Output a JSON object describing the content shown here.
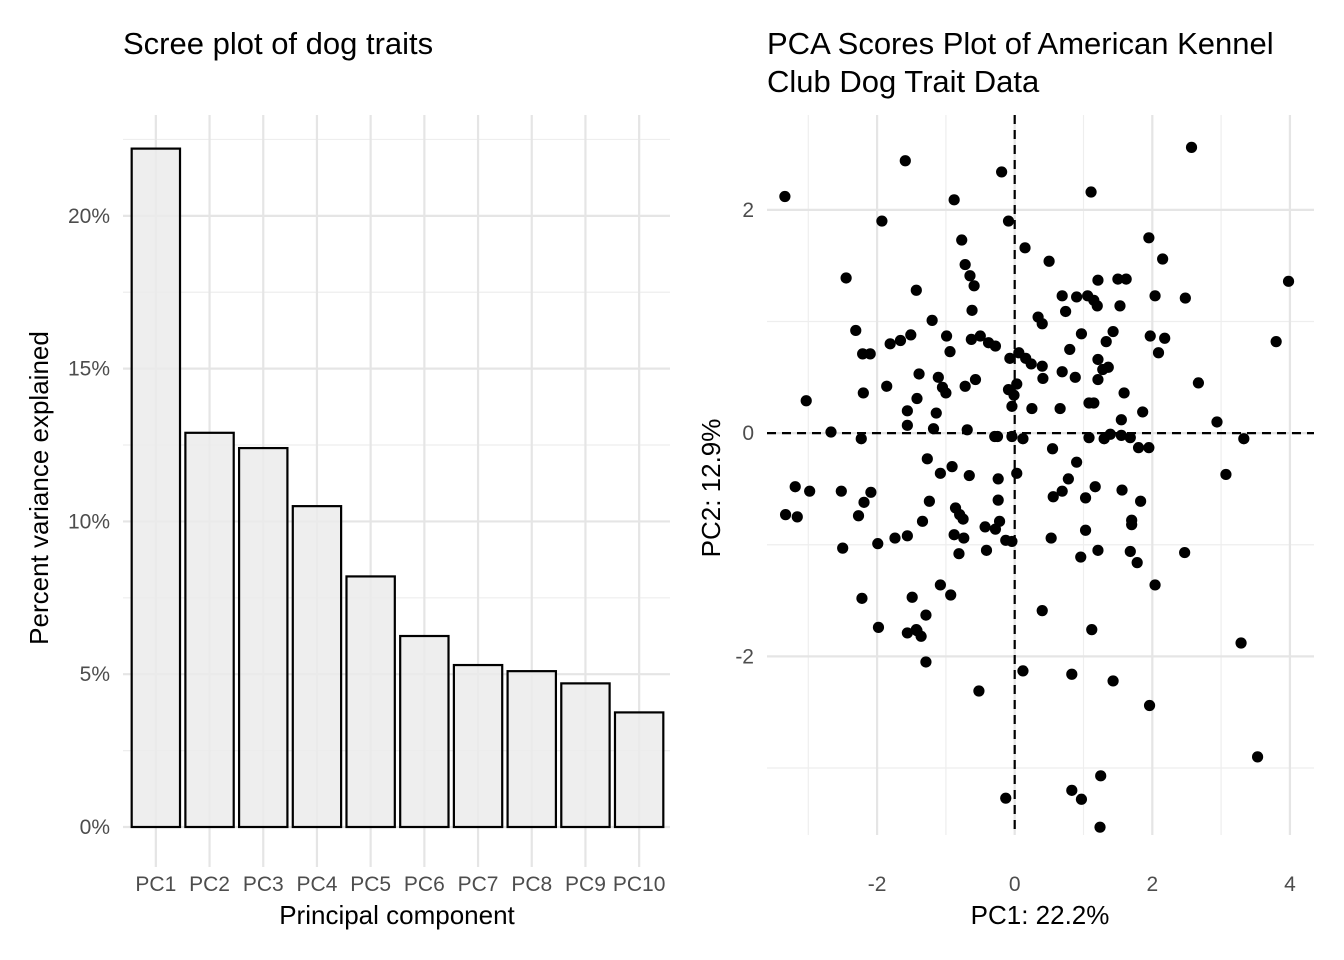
{
  "chart_data": [
    {
      "type": "bar",
      "title": "Scree plot of dog traits",
      "xlabel": "Principal component",
      "ylabel": "Percent variance explained",
      "categories": [
        "PC1",
        "PC2",
        "PC3",
        "PC4",
        "PC5",
        "PC6",
        "PC7",
        "PC8",
        "PC9",
        "PC10"
      ],
      "values": [
        22.2,
        12.9,
        12.4,
        10.5,
        8.2,
        6.25,
        5.3,
        5.1,
        4.7,
        3.75
      ],
      "ylim": [
        0,
        23.3
      ],
      "yticks": [
        0,
        5,
        10,
        15,
        20
      ],
      "ytick_labels": [
        "0%",
        "5%",
        "10%",
        "15%",
        "20%"
      ],
      "grid": true,
      "bar_fill": "#ebebeb",
      "bar_stroke": "#000000"
    },
    {
      "type": "scatter",
      "title": "PCA Scores Plot of American Kennel Club Dog Trait Data",
      "title_lines": [
        "PCA Scores Plot of American Kennel",
        "Club Dog Trait Data"
      ],
      "xlabel": "PC1: 22.2%",
      "ylabel": "PC2: 12.9%",
      "xlim": [
        -3.6,
        4.35
      ],
      "ylim": [
        -3.6,
        2.85
      ],
      "xticks": [
        -2,
        0,
        2,
        4
      ],
      "xtick_labels": [
        "-2",
        "0",
        "2",
        "4"
      ],
      "yticks": [
        -2,
        0,
        2
      ],
      "ytick_labels": [
        "-2",
        "0",
        "2"
      ],
      "reference_lines": {
        "x": 0,
        "y": 0,
        "style": "dashed"
      },
      "grid": true,
      "point_color": "#000000",
      "points": [
        [
          -3.34,
          2.12
        ],
        [
          -1.59,
          2.44
        ],
        [
          -0.19,
          2.34
        ],
        [
          1.11,
          2.16
        ],
        [
          2.57,
          2.56
        ],
        [
          -0.88,
          2.09
        ],
        [
          -1.93,
          1.9
        ],
        [
          -0.09,
          1.9
        ],
        [
          1.95,
          1.75
        ],
        [
          0.15,
          1.66
        ],
        [
          -0.77,
          1.73
        ],
        [
          -2.45,
          1.39
        ],
        [
          0.5,
          1.54
        ],
        [
          2.15,
          1.56
        ],
        [
          -0.72,
          1.51
        ],
        [
          -0.65,
          1.41
        ],
        [
          -0.59,
          1.32
        ],
        [
          1.21,
          1.37
        ],
        [
          1.5,
          1.38
        ],
        [
          1.62,
          1.38
        ],
        [
          0.69,
          1.23
        ],
        [
          2.04,
          1.23
        ],
        [
          2.48,
          1.21
        ],
        [
          3.98,
          1.36
        ],
        [
          -1.43,
          1.28
        ],
        [
          1.06,
          1.23
        ],
        [
          0.9,
          1.22
        ],
        [
          1.15,
          1.19
        ],
        [
          1.2,
          1.14
        ],
        [
          1.53,
          1.14
        ],
        [
          0.74,
          1.09
        ],
        [
          0.34,
          1.04
        ],
        [
          -1.2,
          1.01
        ],
        [
          -0.62,
          1.1
        ],
        [
          -2.31,
          0.92
        ],
        [
          -1.51,
          0.88
        ],
        [
          0.4,
          0.98
        ],
        [
          1.43,
          0.91
        ],
        [
          0.97,
          0.89
        ],
        [
          1.97,
          0.87
        ],
        [
          2.18,
          0.85
        ],
        [
          -1.81,
          0.8
        ],
        [
          -1.66,
          0.83
        ],
        [
          -0.63,
          0.84
        ],
        [
          -0.99,
          0.87
        ],
        [
          -0.5,
          0.87
        ],
        [
          -0.38,
          0.81
        ],
        [
          -0.28,
          0.78
        ],
        [
          3.8,
          0.82
        ],
        [
          0.06,
          0.72
        ],
        [
          -2.21,
          0.71
        ],
        [
          -2.1,
          0.71
        ],
        [
          0.16,
          0.67
        ],
        [
          0.4,
          0.6
        ],
        [
          0.8,
          0.75
        ],
        [
          1.21,
          0.66
        ],
        [
          2.09,
          0.72
        ],
        [
          1.33,
          0.82
        ],
        [
          -0.94,
          0.73
        ],
        [
          0.24,
          0.62
        ],
        [
          -0.07,
          0.67
        ],
        [
          0.69,
          0.55
        ],
        [
          1.36,
          0.59
        ],
        [
          0.41,
          0.49
        ],
        [
          0.88,
          0.5
        ],
        [
          -1.11,
          0.5
        ],
        [
          -1.39,
          0.53
        ],
        [
          1.21,
          0.48
        ],
        [
          1.28,
          0.57
        ],
        [
          -1.86,
          0.42
        ],
        [
          -0.72,
          0.42
        ],
        [
          -0.57,
          0.48
        ],
        [
          0.03,
          0.44
        ],
        [
          -0.09,
          0.39
        ],
        [
          2.67,
          0.45
        ],
        [
          1.59,
          0.36
        ],
        [
          -1.42,
          0.31
        ],
        [
          -1.05,
          0.41
        ],
        [
          -1.0,
          0.36
        ],
        [
          -0.01,
          0.34
        ],
        [
          -2.2,
          0.36
        ],
        [
          0.66,
          0.22
        ],
        [
          0.25,
          0.22
        ],
        [
          1.15,
          0.27
        ],
        [
          1.08,
          0.27
        ],
        [
          1.86,
          0.19
        ],
        [
          1.55,
          0.12
        ],
        [
          2.94,
          0.1
        ],
        [
          -3.03,
          0.29
        ],
        [
          -1.56,
          0.2
        ],
        [
          -0.04,
          0.24
        ],
        [
          -1.14,
          0.18
        ],
        [
          -0.69,
          0.03
        ],
        [
          -1.56,
          0.07
        ],
        [
          -1.18,
          0.04
        ],
        [
          -0.25,
          -0.03
        ],
        [
          -0.29,
          -0.03
        ],
        [
          -0.04,
          -0.03
        ],
        [
          1.68,
          -0.04
        ],
        [
          0.12,
          -0.05
        ],
        [
          -2.67,
          0.01
        ],
        [
          -2.23,
          -0.05
        ],
        [
          1.08,
          -0.04
        ],
        [
          1.3,
          -0.05
        ],
        [
          1.39,
          -0.01
        ],
        [
          1.55,
          -0.02
        ],
        [
          1.8,
          -0.13
        ],
        [
          1.95,
          -0.13
        ],
        [
          3.33,
          -0.05
        ],
        [
          -1.27,
          -0.23
        ],
        [
          0.55,
          -0.14
        ],
        [
          0.03,
          -0.36
        ],
        [
          0.9,
          -0.26
        ],
        [
          -0.91,
          -0.3
        ],
        [
          -1.08,
          -0.36
        ],
        [
          -0.66,
          -0.38
        ],
        [
          -0.24,
          -0.41
        ],
        [
          3.07,
          -0.37
        ],
        [
          -3.19,
          -0.48
        ],
        [
          -2.98,
          -0.52
        ],
        [
          0.78,
          -0.41
        ],
        [
          1.17,
          -0.48
        ],
        [
          0.69,
          -0.52
        ],
        [
          1.03,
          -0.58
        ],
        [
          1.56,
          -0.51
        ],
        [
          -1.24,
          -0.61
        ],
        [
          -2.09,
          -0.53
        ],
        [
          -2.52,
          -0.52
        ],
        [
          1.83,
          -0.61
        ],
        [
          0.56,
          -0.57
        ],
        [
          -0.24,
          -0.6
        ],
        [
          -0.86,
          -0.67
        ],
        [
          -2.19,
          -0.62
        ],
        [
          -2.27,
          -0.74
        ],
        [
          -0.22,
          -0.79
        ],
        [
          -0.04,
          -0.97
        ],
        [
          -0.8,
          -0.73
        ],
        [
          -0.75,
          -0.77
        ],
        [
          -1.34,
          -0.79
        ],
        [
          -0.28,
          -0.86
        ],
        [
          -3.33,
          -0.73
        ],
        [
          -3.16,
          -0.75
        ],
        [
          -0.43,
          -0.84
        ],
        [
          1.03,
          -0.87
        ],
        [
          1.7,
          -0.78
        ],
        [
          1.7,
          -0.82
        ],
        [
          -0.88,
          -0.91
        ],
        [
          -0.74,
          -0.94
        ],
        [
          0.53,
          -0.94
        ],
        [
          0.96,
          -1.11
        ],
        [
          1.21,
          -1.05
        ],
        [
          1.68,
          -1.06
        ],
        [
          1.78,
          -1.16
        ],
        [
          2.04,
          -1.36
        ],
        [
          2.47,
          -1.07
        ],
        [
          -1.99,
          -0.99
        ],
        [
          -1.74,
          -0.94
        ],
        [
          -1.56,
          -0.92
        ],
        [
          -0.81,
          -1.08
        ],
        [
          -0.41,
          -1.05
        ],
        [
          -0.13,
          -0.96
        ],
        [
          -2.5,
          -1.03
        ],
        [
          -1.08,
          -1.36
        ],
        [
          0.4,
          -1.59
        ],
        [
          -2.22,
          -1.48
        ],
        [
          1.12,
          -1.76
        ],
        [
          -1.49,
          -1.47
        ],
        [
          -1.43,
          -1.76
        ],
        [
          -1.29,
          -1.63
        ],
        [
          -1.42,
          -1.77
        ],
        [
          -1.56,
          -1.79
        ],
        [
          -1.36,
          -1.82
        ],
        [
          -1.98,
          -1.74
        ],
        [
          -0.93,
          -1.45
        ],
        [
          3.29,
          -1.88
        ],
        [
          -1.29,
          -2.05
        ],
        [
          -0.52,
          -2.31
        ],
        [
          0.12,
          -2.13
        ],
        [
          0.83,
          -2.16
        ],
        [
          1.43,
          -2.22
        ],
        [
          1.96,
          -2.44
        ],
        [
          3.53,
          -2.9
        ],
        [
          1.25,
          -3.07
        ],
        [
          0.83,
          -3.2
        ],
        [
          0.97,
          -3.28
        ],
        [
          -0.13,
          -3.27
        ],
        [
          1.24,
          -3.53
        ]
      ]
    }
  ]
}
